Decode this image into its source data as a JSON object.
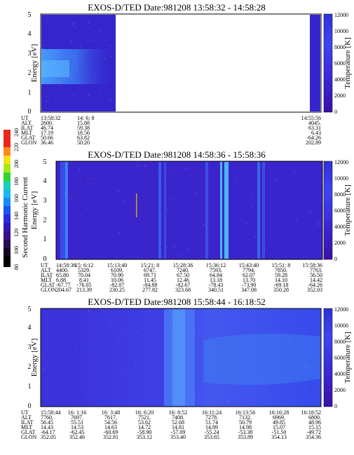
{
  "chart_data": [
    {
      "type": "heatmap",
      "title": "EXOS-D/TED   Date:981208  13:58:32 - 14:58:28",
      "ylabel": "Energy [eV]",
      "ylim": [
        0,
        5
      ],
      "yticks": [
        "0",
        "1",
        "2",
        "3",
        "4",
        "5"
      ],
      "colorbar_label": "Temperature [K]",
      "colorbar_ticks": [
        "0",
        "2000",
        "4000",
        "6000",
        "8000",
        "10000",
        "12000"
      ],
      "ephemeris": {
        "row_labels": [
          "UT",
          "ALT",
          "ILAT",
          "MLT",
          "GLAT",
          "GLON"
        ],
        "columns": [
          [
            "13:58:32",
            "2600.",
            "46.74",
            "17.19",
            "50.66",
            "36.46"
          ],
          [
            "14: 6: 8",
            "15.88",
            "59.38",
            "18.56",
            "63.82",
            "50.20"
          ],
          [
            "14:55:56",
            "4045.",
            "63.31",
            "6.43",
            "-64.26",
            "202.89"
          ]
        ]
      }
    },
    {
      "type": "heatmap",
      "title": "EXOS-D/TED   Date:981208  14:58:36 - 15:58:36",
      "ylabel": "Energy [eV]",
      "ylim": [
        0,
        5
      ],
      "yticks": [
        "0",
        "1",
        "2",
        "3",
        "4",
        "5"
      ],
      "colorbar_label": "Temperature [K]",
      "colorbar_ticks": [
        "0",
        "2000",
        "4000",
        "6000",
        "8000",
        "10000",
        "12000"
      ],
      "ephemeris": {
        "row_labels": [
          "UT",
          "ALT",
          "ILAT",
          "MLT",
          "GLAT",
          "GLON"
        ],
        "columns": [
          [
            "14:58:36",
            "4400.",
            "65.80",
            "6.88",
            "-67.77",
            "204.67"
          ],
          [
            "15: 6:12",
            "5329.",
            "70.04",
            "8.41",
            "-76.05",
            "213.39"
          ],
          [
            "15:13:40",
            "6109.",
            "70.90",
            "10.06",
            "-82.07",
            "230.25"
          ],
          [
            "15:21: 8",
            "6747.",
            "69.71",
            "11.45",
            "-84.88",
            "277.82"
          ],
          [
            "15:28:36",
            "7240.",
            "67.50",
            "12.46",
            "-82.67",
            "323.68"
          ],
          [
            "15:36:12",
            "7593.",
            "64.84",
            "13.18",
            "-78.43",
            "340.51"
          ],
          [
            "15:43:40",
            "7794.",
            "62.07",
            "13.70",
            "-73.90",
            "347.08"
          ],
          [
            "15:51: 8",
            "7850.",
            "59.28",
            "14.10",
            "-69.18",
            "350.28"
          ],
          [
            "15:58:36",
            "7763.",
            "56.50",
            "14.42",
            "-64.26",
            "352.03"
          ]
        ]
      }
    },
    {
      "type": "heatmap",
      "title": "EXOS-D/TED   Date:981208  15:58:44 - 16:18:52",
      "ylabel": "Energy [eV]",
      "ylim": [
        0,
        5
      ],
      "yticks": [
        "0",
        "1",
        "2",
        "3",
        "4",
        "5"
      ],
      "colorbar_label": "Temperature [K]",
      "colorbar_ticks": [
        "0",
        "2000",
        "4000",
        "6000",
        "8000",
        "10000",
        "12000"
      ],
      "ephemeris": {
        "row_labels": [
          "UT",
          "ALT",
          "ILAT",
          "MLT",
          "GLAT",
          "GLON"
        ],
        "columns": [
          [
            "15:58:44",
            "7760.",
            "56.45",
            "14.43",
            "-64.17",
            "352.05"
          ],
          [
            "16: 1:16",
            "7697.",
            "55.51",
            "14.53",
            "-62.45",
            "352.46"
          ],
          [
            "16: 3:48",
            "7617.",
            "54.56",
            "14.63",
            "-60.69",
            "352.81"
          ],
          [
            "16: 6:20",
            "7521.",
            "53.62",
            "14.72",
            "-58.90",
            "353.12"
          ],
          [
            "16: 8:52",
            "7408.",
            "52.68",
            "14.81",
            "-57.09",
            "353.40"
          ],
          [
            "16:11:24",
            "7278.",
            "51.74",
            "14.89",
            "-55.24",
            "353.65"
          ],
          [
            "16:13:56",
            "7132.",
            "50.79",
            "14.98",
            "-53.38",
            "353.89"
          ],
          [
            "16:16:28",
            "6969.",
            "49.85",
            "15.07",
            "-51.50",
            "354.13"
          ],
          [
            "16:18:52",
            "6800.",
            "48.96",
            "15.15",
            "-49.72",
            "354.36"
          ]
        ]
      }
    }
  ],
  "side_colorbar": {
    "label": "Second Harmonic Current",
    "ticks": [
      "80",
      "100",
      "120",
      "140",
      "160",
      "180",
      "200",
      "220",
      "240"
    ]
  },
  "colors": {
    "background_field": "#3a22c8",
    "bright_band": "#2f7df5",
    "cyan_streak": "#4fd0ff",
    "gold_line": "#c9a227"
  }
}
